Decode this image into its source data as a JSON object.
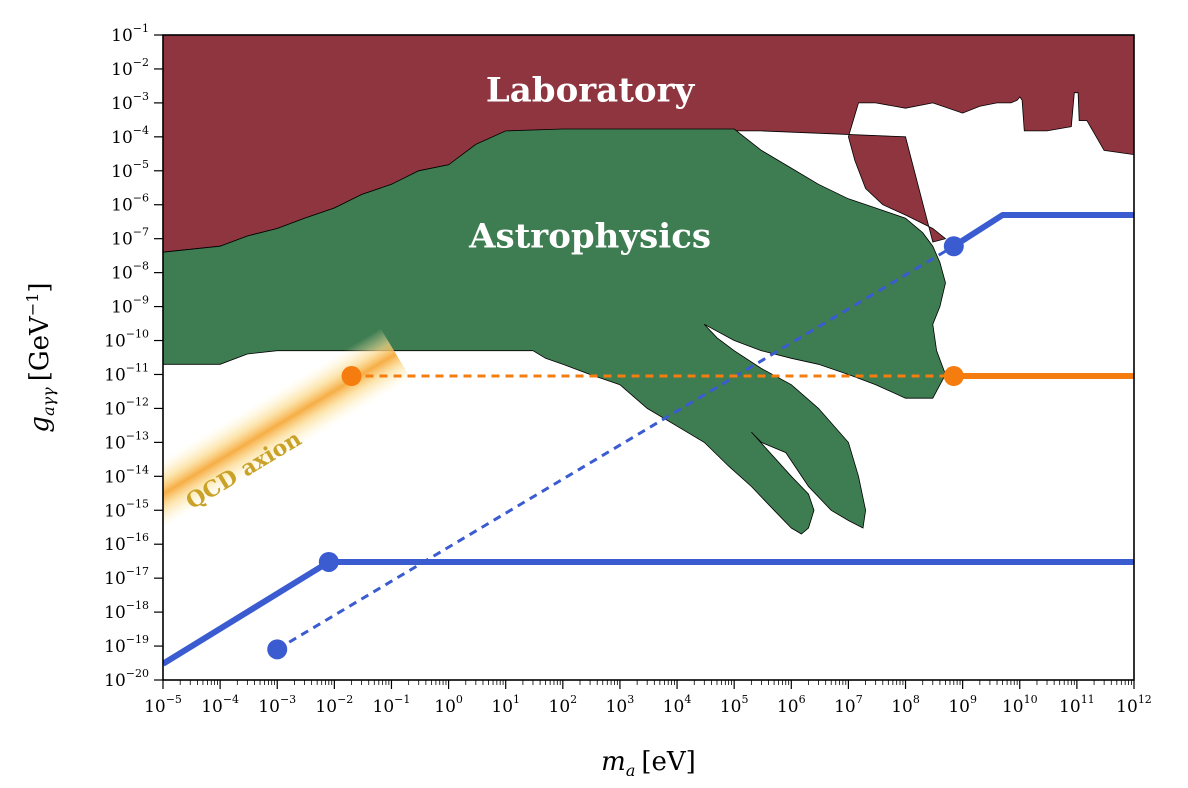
{
  "chart_data": {
    "type": "area",
    "x_scale": "log",
    "y_scale": "log",
    "xlim": [
      1e-05,
      1000000000000.0
    ],
    "ylim": [
      1e-20,
      0.1
    ],
    "grid": false,
    "xlabel_text": "m",
    "xlabel_sub": "a",
    "xlabel_unit": "[eV]",
    "ylabel_text": "g",
    "ylabel_sub": "aγγ",
    "ylabel_unit": "[GeV",
    "ylabel_unit_exp": "−1",
    "ylabel_unit_close": "]",
    "x_ticks": [
      {
        "base": "10",
        "exp": "−5",
        "value": 1e-05
      },
      {
        "base": "10",
        "exp": "−4",
        "value": 0.0001
      },
      {
        "base": "10",
        "exp": "−3",
        "value": 0.001
      },
      {
        "base": "10",
        "exp": "−2",
        "value": 0.01
      },
      {
        "base": "10",
        "exp": "−1",
        "value": 0.1
      },
      {
        "base": "10",
        "exp": "0",
        "value": 1
      },
      {
        "base": "10",
        "exp": "1",
        "value": 10.0
      },
      {
        "base": "10",
        "exp": "2",
        "value": 100.0
      },
      {
        "base": "10",
        "exp": "3",
        "value": 1000.0
      },
      {
        "base": "10",
        "exp": "4",
        "value": 10000.0
      },
      {
        "base": "10",
        "exp": "5",
        "value": 100000.0
      },
      {
        "base": "10",
        "exp": "6",
        "value": 1000000.0
      },
      {
        "base": "10",
        "exp": "7",
        "value": 10000000.0
      },
      {
        "base": "10",
        "exp": "8",
        "value": 100000000.0
      },
      {
        "base": "10",
        "exp": "9",
        "value": 1000000000.0
      },
      {
        "base": "10",
        "exp": "10",
        "value": 10000000000.0
      },
      {
        "base": "10",
        "exp": "11",
        "value": 100000000000.0
      },
      {
        "base": "10",
        "exp": "12",
        "value": 1000000000000.0
      }
    ],
    "y_ticks": [
      {
        "base": "10",
        "exp": "−1",
        "value": 0.1
      },
      {
        "base": "10",
        "exp": "−2",
        "value": 0.01
      },
      {
        "base": "10",
        "exp": "−3",
        "value": 0.001
      },
      {
        "base": "10",
        "exp": "−4",
        "value": 0.0001
      },
      {
        "base": "10",
        "exp": "−5",
        "value": 1e-05
      },
      {
        "base": "10",
        "exp": "−6",
        "value": 1e-06
      },
      {
        "base": "10",
        "exp": "−7",
        "value": 1e-07
      },
      {
        "base": "10",
        "exp": "−8",
        "value": 1e-08
      },
      {
        "base": "10",
        "exp": "−9",
        "value": 1e-09
      },
      {
        "base": "10",
        "exp": "−10",
        "value": 1e-10
      },
      {
        "base": "10",
        "exp": "−11",
        "value": 1e-11
      },
      {
        "base": "10",
        "exp": "−12",
        "value": 1e-12
      },
      {
        "base": "10",
        "exp": "−13",
        "value": 1e-13
      },
      {
        "base": "10",
        "exp": "−14",
        "value": 1e-14
      },
      {
        "base": "10",
        "exp": "−15",
        "value": 1e-15
      },
      {
        "base": "10",
        "exp": "−16",
        "value": 1e-16
      },
      {
        "base": "10",
        "exp": "−17",
        "value": 1e-17
      },
      {
        "base": "10",
        "exp": "−18",
        "value": 1e-18
      },
      {
        "base": "10",
        "exp": "−19",
        "value": 1e-19
      },
      {
        "base": "10",
        "exp": "−20",
        "value": 1e-20
      }
    ],
    "regions": [
      {
        "name": "Laboratory",
        "color": "#8f3540",
        "label_at": [
          300.0,
          0.002
        ],
        "boundary": [
          [
            1e-05,
            0.1
          ],
          [
            1000000000000.0,
            0.1
          ],
          [
            1000000000000.0,
            3e-05
          ],
          [
            300000000000.0,
            4e-05
          ],
          [
            150000000000.0,
            0.0003
          ],
          [
            110000000000.0,
            0.0003
          ],
          [
            105000000000.0,
            0.002
          ],
          [
            90000000000.0,
            0.002
          ],
          [
            80000000000.0,
            0.0002
          ],
          [
            30000000000.0,
            0.00015
          ],
          [
            12000000000.0,
            0.00015
          ],
          [
            11000000000.0,
            0.0012
          ],
          [
            10000000000.0,
            0.0015
          ],
          [
            9000000000.0,
            0.0012
          ],
          [
            7000000000.0,
            0.001
          ],
          [
            4000000000.0,
            0.001
          ],
          [
            2000000000.0,
            0.0008
          ],
          [
            1000000000.0,
            0.0005
          ],
          [
            300000000.0,
            0.001
          ],
          [
            100000000.0,
            0.0007
          ],
          [
            30000000.0,
            0.001
          ],
          [
            15000000.0,
            0.001
          ],
          [
            10000000.0,
            0.0001
          ],
          [
            13000000.0,
            2e-05
          ],
          [
            20000000.0,
            3e-06
          ],
          [
            40000000.0,
            1e-06
          ],
          [
            100000000.0,
            5e-07
          ],
          [
            300000000.0,
            2e-07
          ],
          [
            500000000.0,
            1e-07
          ],
          [
            300000000.0,
            8e-08
          ],
          [
            100000000.0,
            0.0001
          ],
          [
            300000.0,
            0.00015
          ],
          [
            10000.0,
            0.00015
          ],
          [
            1000.0,
            0.00015
          ],
          [
            100.0,
            0.00015
          ],
          [
            10.0,
            0.00013
          ],
          [
            1,
            1.5e-05
          ],
          [
            0.3,
            1e-05
          ],
          [
            0.1,
            4e-06
          ],
          [
            0.03,
            2e-06
          ],
          [
            0.01,
            8e-07
          ],
          [
            0.003,
            4e-07
          ],
          [
            0.001,
            2e-07
          ],
          [
            0.0003,
            1.2e-07
          ],
          [
            0.0001,
            6e-08
          ],
          [
            1e-05,
            4e-08
          ]
        ]
      },
      {
        "name": "Astrophysics",
        "color": "#3e7c51",
        "label_at": [
          300.0,
          1e-07
        ],
        "boundary": [
          [
            1e-05,
            4e-08
          ],
          [
            0.0001,
            6e-08
          ],
          [
            0.0003,
            1.2e-07
          ],
          [
            0.001,
            2e-07
          ],
          [
            0.003,
            4e-07
          ],
          [
            0.01,
            8e-07
          ],
          [
            0.03,
            2e-06
          ],
          [
            0.1,
            4e-06
          ],
          [
            0.3,
            1e-05
          ],
          [
            1,
            1.5e-05
          ],
          [
            3,
            6e-05
          ],
          [
            10,
            0.00015
          ],
          [
            100.0,
            0.00017
          ],
          [
            1000.0,
            0.00017
          ],
          [
            10000.0,
            0.00017
          ],
          [
            50000.0,
            0.00017
          ],
          [
            100000.0,
            0.00017
          ],
          [
            300000.0,
            4e-05
          ],
          [
            1000000.0,
            1.2e-05
          ],
          [
            3000000.0,
            4e-06
          ],
          [
            10000000.0,
            1.5e-06
          ],
          [
            30000000.0,
            8e-07
          ],
          [
            100000000.0,
            4e-07
          ],
          [
            200000000.0,
            1.5e-07
          ],
          [
            300000000.0,
            6e-08
          ],
          [
            400000000.0,
            2e-08
          ],
          [
            500000000.0,
            5e-09
          ],
          [
            400000000.0,
            1e-09
          ],
          [
            300000000.0,
            3e-10
          ],
          [
            350000000.0,
            5e-11
          ],
          [
            500000000.0,
            1e-11
          ],
          [
            300000000.0,
            2e-12
          ],
          [
            100000000.0,
            2e-12
          ],
          [
            30000000.0,
            5e-12
          ],
          [
            10000000.0,
            1e-11
          ],
          [
            3000000.0,
            2e-11
          ],
          [
            1000000.0,
            3e-11
          ],
          [
            300000.0,
            5e-11
          ],
          [
            100000.0,
            1e-10
          ],
          [
            30000.0,
            3e-10
          ],
          [
            50000.0,
            1.2e-10
          ],
          [
            100000.0,
            5e-11
          ],
          [
            300000.0,
            1.5e-11
          ],
          [
            1000000.0,
            5e-12
          ],
          [
            3000000.0,
            1e-12
          ],
          [
            10000000.0,
            1e-13
          ],
          [
            15000000.0,
            1e-14
          ],
          [
            20000000.0,
            1e-15
          ],
          [
            18000000.0,
            3e-16
          ],
          [
            10000000.0,
            5e-16
          ],
          [
            5000000.0,
            1e-15
          ],
          [
            2000000.0,
            5e-15
          ],
          [
            800000.0,
            5e-14
          ],
          [
            300000.0,
            1e-13
          ],
          [
            200000.0,
            2e-13
          ],
          [
            1000000.0,
            1e-14
          ],
          [
            2000000.0,
            3e-15
          ],
          [
            2500000.0,
            1e-15
          ],
          [
            2000000.0,
            3e-16
          ],
          [
            1500000.0,
            2e-16
          ],
          [
            1000000.0,
            3e-16
          ],
          [
            500000.0,
            1e-15
          ],
          [
            200000.0,
            5e-15
          ],
          [
            80000.0,
            2e-14
          ],
          [
            30000.0,
            1e-13
          ],
          [
            10000.0,
            3e-13
          ],
          [
            3000.0,
            1e-12
          ],
          [
            1000.0,
            5e-12
          ],
          [
            300.0,
            1e-11
          ],
          [
            100.0,
            2e-11
          ],
          [
            50,
            3e-11
          ],
          [
            30,
            5e-11
          ],
          [
            10,
            5e-11
          ],
          [
            1,
            5e-11
          ],
          [
            0.1,
            5e-11
          ],
          [
            0.01,
            5e-11
          ],
          [
            0.001,
            5e-11
          ],
          [
            0.0003,
            4e-11
          ],
          [
            0.0001,
            2e-11
          ],
          [
            3e-05,
            2e-11
          ],
          [
            1e-05,
            2e-11
          ]
        ]
      }
    ],
    "band": {
      "name": "QCD axion",
      "color": "#f6a93b",
      "label_at": [
        0.0003,
        1e-14
      ],
      "slope_decades_y_per_x": 1,
      "center": [
        [
          1e-05,
          3e-15
        ],
        [
          0.03,
          1e-11
        ]
      ]
    },
    "series": [
      {
        "name": "",
        "color": "#3b5bd1",
        "style": "solid",
        "points": [
          [
            1e-05,
            3e-20
          ],
          [
            0.008,
            3e-17
          ],
          [
            1000000000000.0,
            3e-17
          ]
        ]
      },
      {
        "name": "",
        "color": "#3b5bd1",
        "style": "solid",
        "points": [
          [
            700000000.0,
            6e-08
          ],
          [
            5000000000.0,
            5e-07
          ],
          [
            1000000000000.0,
            5e-07
          ]
        ]
      },
      {
        "name": "",
        "color": "#3b5bd1",
        "style": "dashed",
        "points": [
          [
            0.001,
            8e-20
          ],
          [
            700000000.0,
            6e-08
          ]
        ]
      },
      {
        "name": "",
        "color": "#f57c0f",
        "style": "dashed",
        "points": [
          [
            0.02,
            9e-12
          ],
          [
            700000000.0,
            9e-12
          ]
        ]
      },
      {
        "name": "",
        "color": "#f57c0f",
        "style": "solid",
        "points": [
          [
            700000000.0,
            9e-12
          ],
          [
            1000000000000.0,
            9e-12
          ]
        ]
      }
    ],
    "markers": [
      {
        "color": "#3b5bd1",
        "x": 0.008,
        "y": 3e-17
      },
      {
        "color": "#3b5bd1",
        "x": 0.001,
        "y": 8e-20
      },
      {
        "color": "#3b5bd1",
        "x": 700000000.0,
        "y": 6e-08
      },
      {
        "color": "#f57c0f",
        "x": 0.02,
        "y": 9e-12
      },
      {
        "color": "#f57c0f",
        "x": 700000000.0,
        "y": 9e-12
      }
    ]
  }
}
